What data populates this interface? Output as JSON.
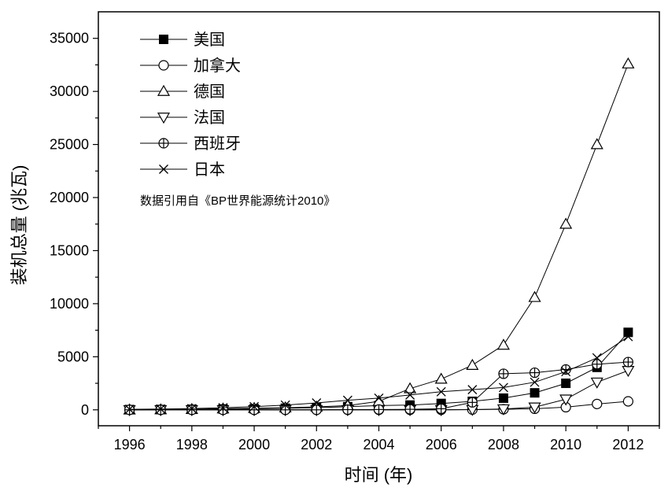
{
  "chart_data": {
    "type": "line",
    "title": "",
    "xlabel": "时间 (年)",
    "ylabel": "装机总量 (兆瓦)",
    "annotation": "数据引用自《BP世界能源统计2010》",
    "xlim": [
      1995,
      2013
    ],
    "ylim": [
      -1500,
      37500
    ],
    "x_ticks": [
      "1996",
      "1998",
      "2000",
      "2002",
      "2004",
      "2006",
      "2008",
      "2010",
      "2012"
    ],
    "y_ticks": [
      "0",
      "5000",
      "10000",
      "15000",
      "20000",
      "25000",
      "30000",
      "35000"
    ],
    "grid": false,
    "legend_position": "top-left",
    "x": [
      1996,
      1997,
      1998,
      1999,
      2000,
      2001,
      2002,
      2003,
      2004,
      2005,
      2006,
      2007,
      2008,
      2009,
      2010,
      2011,
      2012
    ],
    "series": [
      {
        "name": "美国",
        "marker": "square-filled",
        "values": [
          20,
          30,
          50,
          80,
          100,
          150,
          200,
          300,
          400,
          450,
          600,
          800,
          1100,
          1600,
          2500,
          4000,
          7300
        ]
      },
      {
        "name": "加拿大",
        "marker": "circle",
        "values": [
          0,
          0,
          0,
          0,
          0,
          0,
          0,
          0,
          0,
          0,
          0,
          20,
          50,
          100,
          250,
          550,
          800
        ]
      },
      {
        "name": "德国",
        "marker": "triangle-up",
        "values": [
          0,
          20,
          50,
          100,
          150,
          200,
          280,
          400,
          800,
          2000,
          2900,
          4200,
          6100,
          10600,
          17500,
          25000,
          32600
        ]
      },
      {
        "name": "法国",
        "marker": "triangle-down",
        "values": [
          0,
          0,
          0,
          0,
          0,
          0,
          0,
          0,
          0,
          0,
          0,
          20,
          80,
          250,
          1000,
          2600,
          3700
        ]
      },
      {
        "name": "西班牙",
        "marker": "circle-plus",
        "values": [
          0,
          0,
          0,
          0,
          0,
          0,
          0,
          20,
          30,
          50,
          100,
          700,
          3400,
          3500,
          3800,
          4300,
          4500
        ]
      },
      {
        "name": "日本",
        "marker": "x-cross",
        "values": [
          50,
          80,
          120,
          200,
          300,
          450,
          650,
          900,
          1100,
          1400,
          1700,
          1900,
          2100,
          2600,
          3600,
          4900,
          6900
        ]
      }
    ]
  }
}
